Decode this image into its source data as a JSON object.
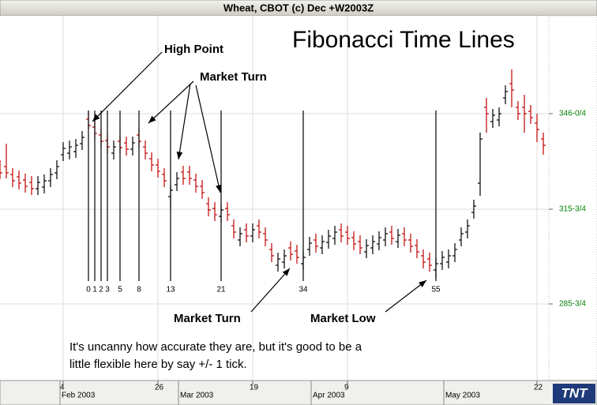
{
  "window_title": "Wheat, CBOT (c) Dec +W2003Z",
  "chart_data": {
    "type": "ohlc",
    "title": "Fibonacci Time Lines",
    "high": [
      331.25,
      336.5,
      328.75,
      328,
      327,
      326.25,
      326.25,
      326.75,
      328.75,
      331.25,
      337,
      337.5,
      338,
      340.5,
      347,
      343.75,
      341.25,
      339.5,
      337.5,
      339.25,
      338.75,
      338.75,
      341.25,
      337.5,
      333.75,
      331.75,
      328.75,
      323.5,
      327.5,
      329.5,
      329.5,
      327,
      325,
      319.5,
      318,
      317.5,
      318,
      312.5,
      310,
      311.25,
      311.25,
      312.5,
      310,
      305,
      302,
      303,
      305.5,
      304.5,
      302.5,
      307,
      308,
      307.5,
      309.25,
      310.5,
      311.25,
      310.5,
      308.75,
      307.5,
      306.25,
      307.5,
      308.75,
      310,
      310.5,
      309.5,
      310,
      308,
      306.25,
      303,
      302,
      300.5,
      302.5,
      303,
      305,
      310,
      312.5,
      318.75,
      340,
      351,
      347.5,
      348,
      355,
      360,
      350,
      352,
      348.75,
      346,
      340
    ],
    "low": [
      325.25,
      325.5,
      322.75,
      322,
      321,
      320.25,
      320.25,
      320.75,
      322.75,
      325.25,
      331,
      331.5,
      332,
      334.5,
      341,
      337.75,
      335.25,
      333.5,
      331.5,
      333.25,
      332.75,
      332.75,
      335.25,
      331.5,
      327.75,
      325.75,
      322.75,
      316,
      321.5,
      323.5,
      323.5,
      321,
      319,
      313.5,
      312,
      311.5,
      312,
      306.5,
      304,
      305.25,
      305.25,
      306.5,
      304,
      299,
      296,
      297,
      299.5,
      298.5,
      296.5,
      301,
      302,
      301.5,
      303.25,
      304.5,
      305.25,
      304.5,
      302.75,
      301.5,
      300.25,
      301.5,
      302.75,
      304,
      304.5,
      303.5,
      304,
      302,
      300.25,
      297,
      296,
      294,
      296.5,
      297,
      299,
      304,
      306.5,
      312.75,
      320,
      340,
      341.5,
      342,
      349,
      348,
      344,
      340,
      342.75,
      337,
      333
    ],
    "open": [
      329.25,
      329.25,
      326.75,
      326,
      325,
      324.25,
      322.25,
      322.75,
      324.75,
      327.25,
      333,
      333.5,
      334,
      336.5,
      344.25,
      341.75,
      339.25,
      337.5,
      333.5,
      337.25,
      336.75,
      334.75,
      339.25,
      335.5,
      331.75,
      329.75,
      326.75,
      319.75,
      323.5,
      327.5,
      327.5,
      325,
      323,
      317.5,
      316,
      313.5,
      316,
      310.5,
      306,
      309.25,
      307.25,
      310.5,
      308,
      303,
      298,
      299,
      303.5,
      302.5,
      298.5,
      303,
      306,
      303.5,
      305.25,
      306.5,
      309.25,
      308.5,
      306.75,
      305.5,
      302.25,
      303.5,
      304.75,
      306,
      308.5,
      305.5,
      308,
      306,
      304.25,
      301,
      300,
      296.5,
      298.5,
      299,
      301,
      306,
      308.5,
      314.75,
      324,
      348,
      343.5,
      344,
      351,
      355.5,
      348,
      348,
      346.75,
      343,
      338
    ],
    "close": [
      327.25,
      327.25,
      324.75,
      324,
      323,
      322.25,
      324.25,
      324.75,
      326.75,
      329.25,
      335,
      335.5,
      336,
      338.5,
      342.25,
      339.75,
      337.25,
      335.5,
      335.5,
      335.25,
      334.75,
      336.75,
      337.25,
      333.5,
      329.75,
      327.75,
      324.75,
      321.75,
      325.5,
      325.5,
      325.5,
      323,
      321,
      315.5,
      314,
      315.5,
      314,
      308.5,
      308,
      307.25,
      309.25,
      308.5,
      306,
      301,
      300,
      301,
      301.5,
      300.5,
      300.5,
      305,
      304,
      305.5,
      307.25,
      308.5,
      307.25,
      306.5,
      304.75,
      303.5,
      304.25,
      305.5,
      306.75,
      308,
      306.5,
      307.5,
      306,
      304,
      302.25,
      299,
      298,
      298.5,
      300.5,
      301,
      303,
      308,
      310.5,
      316.75,
      338,
      346,
      345.5,
      346,
      353,
      353.5,
      346,
      346,
      344.75,
      341,
      336
    ],
    "up_color": "#000000",
    "down_color": "#c00000",
    "ylim": [
      261.5,
      377
    ],
    "yticks": [
      {
        "value": 346,
        "label": "346-0/4"
      },
      {
        "value": 315.75,
        "label": "315-3/4"
      },
      {
        "value": 285.75,
        "label": "285-3/4"
      }
    ],
    "xlim": [
      0,
      86.875
    ],
    "xticks": [
      {
        "value": 10,
        "label": "4"
      },
      {
        "value": 25,
        "label": "26"
      },
      {
        "value": 40,
        "label": "19"
      },
      {
        "value": 55,
        "label": "9"
      },
      {
        "value": 85,
        "label": "22"
      }
    ],
    "months": {
      "labels": [
        "Feb 2003",
        "Mar 2003",
        "Apr 2003",
        "May 2003"
      ],
      "x": [
        9.5,
        28.25,
        49.25,
        70.25
      ]
    },
    "grid": true,
    "fib_lines": {
      "labels": [
        0,
        1,
        2,
        3,
        5,
        8,
        13,
        21,
        34,
        55
      ],
      "x": [
        14,
        15,
        16,
        17,
        19,
        22,
        27,
        35,
        48,
        69
      ]
    },
    "annotations": {
      "high_point": "High Point",
      "market_turn_top": "Market Turn",
      "market_turn_bottom": "Market Turn",
      "market_low": "Market Low",
      "note": [
        "It's uncanny how accurate they are, but it's good to be a",
        "little flexible here by say +/- 1 tick."
      ]
    }
  },
  "logo": "TNT"
}
